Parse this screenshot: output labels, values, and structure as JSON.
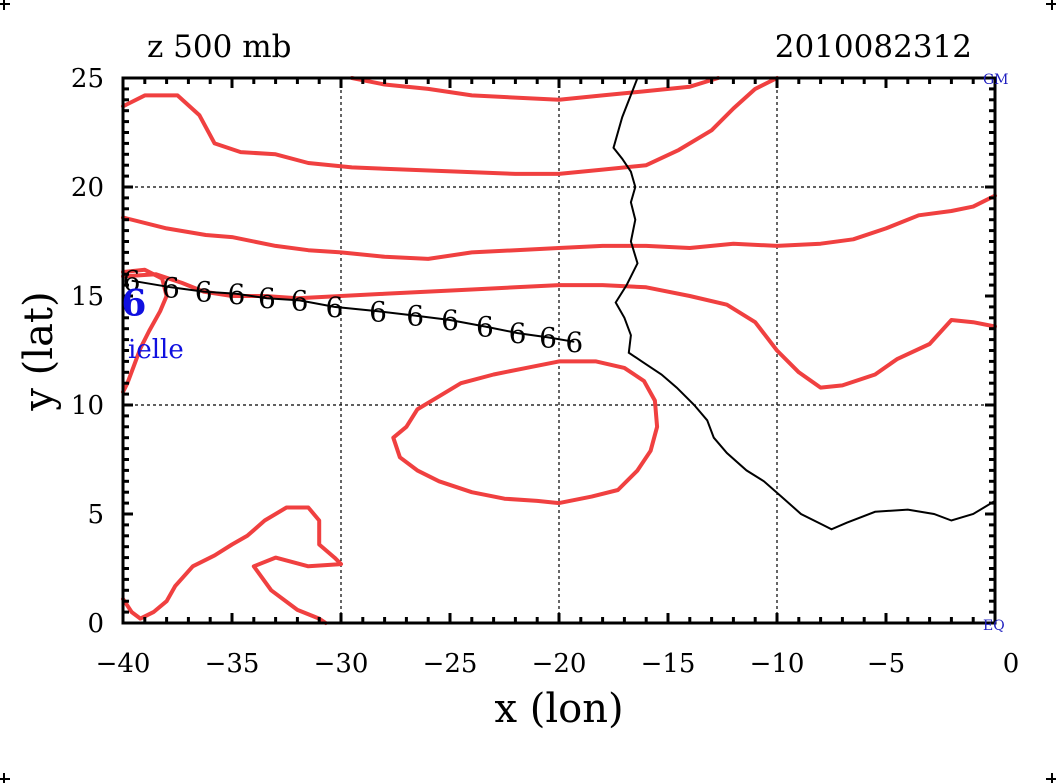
{
  "chart_data": {
    "type": "line",
    "title": "z 500 mb",
    "timestamp": "2010082312",
    "xlabel": "x (lon)",
    "ylabel": "y (lat)",
    "xlim": [
      -40,
      0
    ],
    "ylim": [
      0,
      25
    ],
    "xticks": [
      -40,
      -35,
      -30,
      -25,
      -20,
      -15,
      -10,
      -5,
      0
    ],
    "yticks": [
      0,
      5,
      10,
      15,
      20,
      25
    ],
    "xtick_labels": [
      "−40",
      "−35",
      "−30",
      "−25",
      "−20",
      "−15",
      "−10",
      "−5",
      "0"
    ],
    "ytick_labels": [
      "0",
      "5",
      "10",
      "15",
      "20",
      "25"
    ],
    "grid_x": [
      -30,
      -20,
      -10
    ],
    "grid_y": [
      10,
      20
    ],
    "corner_labels": {
      "top_right": "GM",
      "bottom_right": "EQ"
    },
    "storm_label": "ielle",
    "storm_symbol": "6",
    "colors": {
      "contour": "#f04040",
      "coast": "#000000",
      "track": "#000000",
      "storm": "#1010e0",
      "corner": "#2020c0"
    },
    "track": [
      {
        "lon": -39.6,
        "lat": 15.7
      },
      {
        "lon": -37.8,
        "lat": 15.4
      },
      {
        "lon": -36.3,
        "lat": 15.2
      },
      {
        "lon": -34.8,
        "lat": 15.1
      },
      {
        "lon": -33.4,
        "lat": 14.9
      },
      {
        "lon": -31.9,
        "lat": 14.8
      },
      {
        "lon": -30.3,
        "lat": 14.5
      },
      {
        "lon": -28.3,
        "lat": 14.3
      },
      {
        "lon": -26.6,
        "lat": 14.1
      },
      {
        "lon": -25.0,
        "lat": 13.9
      },
      {
        "lon": -23.4,
        "lat": 13.6
      },
      {
        "lon": -21.9,
        "lat": 13.3
      },
      {
        "lon": -20.5,
        "lat": 13.1
      },
      {
        "lon": -19.3,
        "lat": 12.9
      }
    ],
    "storm_position": {
      "lon": -39.5,
      "lat": 14.7
    },
    "coastline": [
      [
        -16.4,
        25
      ],
      [
        -17.1,
        23.2
      ],
      [
        -17.5,
        21.8
      ],
      [
        -17.1,
        21.3
      ],
      [
        -16.7,
        20.7
      ],
      [
        -16.5,
        20.0
      ],
      [
        -16.7,
        19.3
      ],
      [
        -16.5,
        18.5
      ],
      [
        -16.7,
        17.5
      ],
      [
        -16.4,
        16.5
      ],
      [
        -16.9,
        15.5
      ],
      [
        -17.4,
        14.7
      ],
      [
        -17.0,
        14.0
      ],
      [
        -16.7,
        13.2
      ],
      [
        -16.8,
        12.4
      ],
      [
        -16.2,
        12.0
      ],
      [
        -15.3,
        11.4
      ],
      [
        -14.6,
        10.8
      ],
      [
        -13.8,
        10.0
      ],
      [
        -13.2,
        9.3
      ],
      [
        -12.9,
        8.5
      ],
      [
        -12.3,
        7.8
      ],
      [
        -11.4,
        7.0
      ],
      [
        -10.6,
        6.5
      ],
      [
        -9.8,
        5.8
      ],
      [
        -8.9,
        5.0
      ],
      [
        -7.9,
        4.5
      ],
      [
        -7.5,
        4.3
      ],
      [
        -6.8,
        4.6
      ],
      [
        -5.5,
        5.1
      ],
      [
        -4.0,
        5.2
      ],
      [
        -2.8,
        5.0
      ],
      [
        -2.0,
        4.7
      ],
      [
        -1.0,
        5.0
      ],
      [
        0,
        5.6
      ]
    ],
    "contours": [
      [
        [
          -12.7,
          25
        ],
        [
          -14.0,
          24.6
        ],
        [
          -16.0,
          24.4
        ],
        [
          -18.0,
          24.2
        ],
        [
          -20.0,
          24.0
        ],
        [
          -22.0,
          24.1
        ],
        [
          -24.0,
          24.2
        ],
        [
          -26.0,
          24.5
        ],
        [
          -28.0,
          24.7
        ],
        [
          -29.5,
          25
        ]
      ],
      [
        [
          -40,
          23.7
        ],
        [
          -39.0,
          24.2
        ],
        [
          -37.5,
          24.2
        ],
        [
          -36.5,
          23.3
        ],
        [
          -35.8,
          22.0
        ],
        [
          -34.6,
          21.6
        ],
        [
          -33.0,
          21.5
        ],
        [
          -31.5,
          21.1
        ],
        [
          -29.5,
          20.9
        ],
        [
          -27.0,
          20.8
        ],
        [
          -24.5,
          20.7
        ],
        [
          -22.0,
          20.6
        ],
        [
          -20.0,
          20.6
        ],
        [
          -18.0,
          20.8
        ],
        [
          -16.0,
          21.0
        ],
        [
          -14.5,
          21.7
        ],
        [
          -13.0,
          22.6
        ],
        [
          -12.0,
          23.6
        ],
        [
          -11.0,
          24.5
        ],
        [
          -10.0,
          25.0
        ]
      ],
      [
        [
          -40,
          18.6
        ],
        [
          -38.0,
          18.1
        ],
        [
          -36.2,
          17.8
        ],
        [
          -35.0,
          17.7
        ],
        [
          -33.0,
          17.3
        ],
        [
          -31.5,
          17.1
        ],
        [
          -30.0,
          17.0
        ],
        [
          -28.0,
          16.8
        ],
        [
          -26.0,
          16.7
        ],
        [
          -24.0,
          17.0
        ],
        [
          -22.0,
          17.1
        ],
        [
          -20.0,
          17.2
        ],
        [
          -18.0,
          17.3
        ],
        [
          -16.0,
          17.3
        ],
        [
          -14.0,
          17.2
        ],
        [
          -12.0,
          17.4
        ],
        [
          -10.0,
          17.3
        ],
        [
          -8.0,
          17.4
        ],
        [
          -6.5,
          17.6
        ],
        [
          -5.0,
          18.1
        ],
        [
          -3.5,
          18.7
        ],
        [
          -2.0,
          18.9
        ],
        [
          -1.0,
          19.1
        ],
        [
          0,
          19.6
        ]
      ],
      [
        [
          -40,
          15.9
        ],
        [
          -38.5,
          16.0
        ],
        [
          -37.3,
          15.6
        ],
        [
          -36.3,
          15.2
        ],
        [
          -35.0,
          15.0
        ],
        [
          -33.5,
          15.0
        ],
        [
          -32.0,
          14.9
        ],
        [
          -30.0,
          15.0
        ],
        [
          -28.0,
          15.1
        ],
        [
          -26.0,
          15.2
        ],
        [
          -24.0,
          15.3
        ],
        [
          -22.0,
          15.4
        ],
        [
          -20.0,
          15.5
        ],
        [
          -18.0,
          15.5
        ],
        [
          -16.0,
          15.4
        ],
        [
          -14.0,
          15.0
        ],
        [
          -12.3,
          14.6
        ],
        [
          -11.0,
          13.8
        ],
        [
          -10.0,
          12.5
        ],
        [
          -9.0,
          11.5
        ],
        [
          -8.0,
          10.8
        ],
        [
          -7.0,
          10.9
        ],
        [
          -5.5,
          11.4
        ],
        [
          -4.5,
          12.1
        ],
        [
          -3.0,
          12.8
        ],
        [
          -2.0,
          13.9
        ],
        [
          -1.0,
          13.8
        ],
        [
          0,
          13.6
        ]
      ],
      [
        [
          -40,
          16.1
        ],
        [
          -39.0,
          16.2
        ],
        [
          -38.2,
          15.8
        ],
        [
          -38.0,
          15.0
        ],
        [
          -38.3,
          14.3
        ],
        [
          -38.8,
          13.4
        ],
        [
          -39.2,
          12.6
        ],
        [
          -39.5,
          11.8
        ],
        [
          -39.8,
          11.0
        ],
        [
          -40,
          10.6
        ]
      ],
      [
        [
          -40,
          1.1
        ],
        [
          -39.6,
          0.5
        ],
        [
          -39.2,
          0.2
        ],
        [
          -38.6,
          0.5
        ],
        [
          -38.0,
          1.0
        ],
        [
          -37.6,
          1.7
        ],
        [
          -36.8,
          2.6
        ],
        [
          -35.8,
          3.1
        ],
        [
          -35.0,
          3.6
        ],
        [
          -34.3,
          4.0
        ],
        [
          -33.5,
          4.7
        ],
        [
          -32.5,
          5.3
        ],
        [
          -31.5,
          5.3
        ],
        [
          -31.0,
          4.7
        ],
        [
          -31.0,
          3.6
        ],
        [
          -30.3,
          3.0
        ],
        [
          -30.0,
          2.7
        ],
        [
          -31.5,
          2.6
        ],
        [
          -33.0,
          3.0
        ],
        [
          -34.0,
          2.6
        ],
        [
          -33.2,
          1.5
        ],
        [
          -32.0,
          0.6
        ],
        [
          -31.0,
          0.2
        ],
        [
          -30.7,
          0
        ]
      ],
      [
        [
          -20.0,
          5.5
        ],
        [
          -18.5,
          5.8
        ],
        [
          -17.3,
          6.1
        ],
        [
          -16.4,
          7.0
        ],
        [
          -15.8,
          7.9
        ],
        [
          -15.5,
          9.0
        ],
        [
          -15.6,
          10.2
        ],
        [
          -16.1,
          11.1
        ],
        [
          -17.0,
          11.7
        ],
        [
          -18.3,
          12.0
        ],
        [
          -20.0,
          12.0
        ],
        [
          -21.5,
          11.7
        ],
        [
          -23.0,
          11.4
        ],
        [
          -24.5,
          11.0
        ],
        [
          -25.5,
          10.4
        ],
        [
          -26.5,
          9.8
        ],
        [
          -27.0,
          9.0
        ],
        [
          -27.6,
          8.5
        ],
        [
          -27.3,
          7.6
        ],
        [
          -26.5,
          7.0
        ],
        [
          -25.5,
          6.5
        ],
        [
          -24.0,
          6.0
        ],
        [
          -22.5,
          5.7
        ],
        [
          -21.0,
          5.6
        ],
        [
          -20.0,
          5.5
        ]
      ]
    ]
  }
}
